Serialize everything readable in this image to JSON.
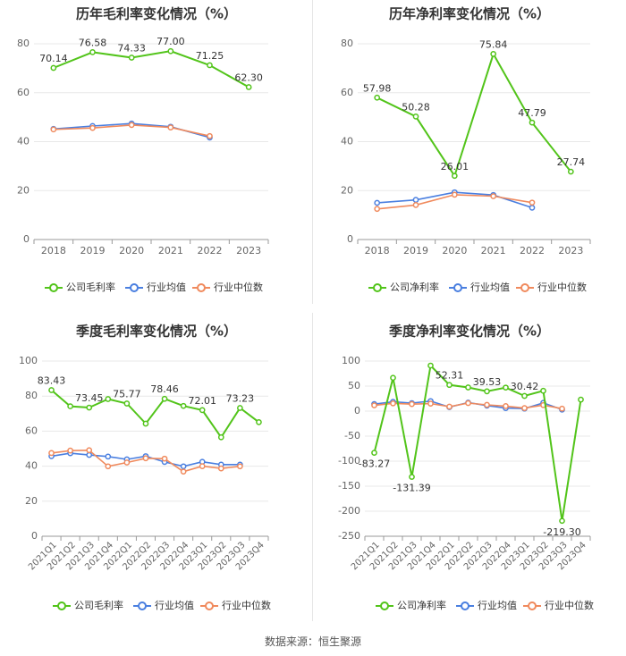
{
  "colors": {
    "company": "#52c41a",
    "avg": "#4a7fe0",
    "median": "#f08a5d",
    "grid": "#e8e8e8",
    "axis": "#999999",
    "text": "#333333",
    "tick": "#666666"
  },
  "source": "数据来源：恒生聚源",
  "chart_data": [
    {
      "type": "line",
      "title": "历年毛利率变化情况（%）",
      "categories": [
        "2018",
        "2019",
        "2020",
        "2021",
        "2022",
        "2023"
      ],
      "ylim": [
        0,
        80
      ],
      "yticks": [
        0,
        20,
        40,
        60,
        80
      ],
      "legend": [
        "公司毛利率",
        "行业均值",
        "行业中位数"
      ],
      "series": [
        {
          "name": "公司毛利率",
          "color": "#52c41a",
          "values": [
            70.14,
            76.58,
            74.33,
            77.0,
            71.25,
            62.3
          ],
          "labels": [
            "70.14",
            "76.58",
            "74.33",
            "77.00",
            "71.25",
            "62.30"
          ]
        },
        {
          "name": "行业均值",
          "color": "#4a7fe0",
          "values": [
            45.2,
            46.4,
            47.4,
            46.1,
            41.7,
            null
          ]
        },
        {
          "name": "行业中位数",
          "color": "#f08a5d",
          "values": [
            45.0,
            45.6,
            46.8,
            45.8,
            42.3,
            null
          ]
        }
      ]
    },
    {
      "type": "line",
      "title": "历年净利率变化情况（%）",
      "categories": [
        "2018",
        "2019",
        "2020",
        "2021",
        "2022",
        "2023"
      ],
      "ylim": [
        0,
        80
      ],
      "yticks": [
        0,
        20,
        40,
        60,
        80
      ],
      "legend": [
        "公司净利率",
        "行业均值",
        "行业中位数"
      ],
      "series": [
        {
          "name": "公司净利率",
          "color": "#52c41a",
          "values": [
            57.98,
            50.28,
            26.01,
            75.84,
            47.79,
            27.74
          ],
          "labels": [
            "57.98",
            "50.28",
            "26.01",
            "75.84",
            "47.79",
            "27.74"
          ]
        },
        {
          "name": "行业均值",
          "color": "#4a7fe0",
          "values": [
            15.0,
            16.2,
            19.3,
            18.2,
            13.0,
            null
          ]
        },
        {
          "name": "行业中位数",
          "color": "#f08a5d",
          "values": [
            12.5,
            14.1,
            18.3,
            17.7,
            15.1,
            null
          ]
        }
      ]
    },
    {
      "type": "line",
      "title": "季度毛利率变化情况（%）",
      "categories": [
        "2021Q1",
        "2021Q2",
        "2021Q3",
        "2021Q4",
        "2022Q1",
        "2022Q2",
        "2022Q3",
        "2022Q4",
        "2023Q1",
        "2023Q2",
        "2023Q3",
        "2023Q4"
      ],
      "ylim": [
        0,
        100
      ],
      "yticks": [
        0,
        20,
        40,
        60,
        80,
        100
      ],
      "legend": [
        "公司毛利率",
        "行业均值",
        "行业中位数"
      ],
      "series": [
        {
          "name": "公司毛利率",
          "color": "#52c41a",
          "values": [
            83.43,
            74.2,
            73.45,
            78.3,
            75.77,
            64.3,
            78.46,
            74.4,
            72.01,
            56.5,
            73.23,
            65.1
          ],
          "labels": [
            "83.43",
            null,
            "73.45",
            null,
            "75.77",
            null,
            "78.46",
            null,
            "72.01",
            null,
            "73.23",
            null
          ]
        },
        {
          "name": "行业均值",
          "color": "#4a7fe0",
          "values": [
            45.7,
            47.4,
            46.4,
            45.5,
            43.9,
            45.7,
            42.4,
            39.9,
            42.5,
            40.9,
            40.9,
            null
          ]
        },
        {
          "name": "行业中位数",
          "color": "#f08a5d",
          "values": [
            47.5,
            48.9,
            49.1,
            39.9,
            42.1,
            44.5,
            44.3,
            36.9,
            40.0,
            38.7,
            39.9,
            null
          ]
        }
      ]
    },
    {
      "type": "line",
      "title": "季度净利率变化情况（%）",
      "categories": [
        "2021Q1",
        "2021Q2",
        "2021Q3",
        "2021Q4",
        "2022Q1",
        "2022Q2",
        "2022Q3",
        "2022Q4",
        "2023Q1",
        "2023Q2",
        "2023Q3",
        "2023Q4"
      ],
      "ylim": [
        -250,
        100
      ],
      "yticks": [
        -250,
        -200,
        -150,
        -100,
        -50,
        0,
        50,
        100
      ],
      "legend": [
        "公司净利率",
        "行业均值",
        "行业中位数"
      ],
      "series": [
        {
          "name": "公司净利率",
          "color": "#52c41a",
          "values": [
            -83.27,
            66.5,
            -131.39,
            91.0,
            52.31,
            47.3,
            39.53,
            47.0,
            30.42,
            40.6,
            -219.3,
            23.0
          ],
          "labels": [
            "-83.27",
            null,
            "-131.39",
            null,
            "52.31",
            null,
            "39.53",
            null,
            "30.42",
            null,
            "-219.30",
            null
          ]
        },
        {
          "name": "行业均值",
          "color": "#4a7fe0",
          "values": [
            14.0,
            18.5,
            16.0,
            20.0,
            8.0,
            17.0,
            11.0,
            6.0,
            5.0,
            16.5,
            3.0,
            null
          ]
        },
        {
          "name": "行业中位数",
          "color": "#f08a5d",
          "values": [
            11.5,
            15.5,
            14.0,
            15.0,
            9.0,
            16.0,
            12.5,
            10.0,
            6.0,
            12.0,
            5.0,
            null
          ]
        }
      ]
    }
  ]
}
